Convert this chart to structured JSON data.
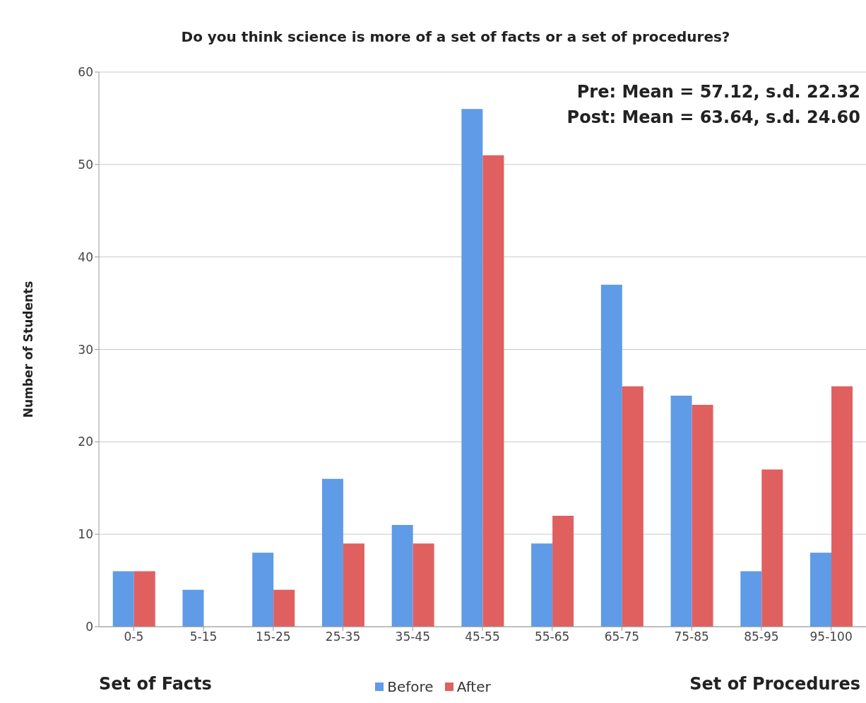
{
  "chart_data": {
    "type": "bar",
    "title": "Do you think science is more of a set of facts or a set of procedures?",
    "ylabel": "Number of Students",
    "categories": [
      "0-5",
      "5-15",
      "15-25",
      "25-35",
      "35-45",
      "45-55",
      "55-65",
      "65-75",
      "75-85",
      "85-95",
      "95-100"
    ],
    "series": [
      {
        "name": "Before",
        "color": "#5f9be6",
        "values": [
          6,
          4,
          8,
          16,
          11,
          56,
          9,
          37,
          25,
          6,
          8
        ]
      },
      {
        "name": "After",
        "color": "#e06060",
        "values": [
          6,
          0,
          4,
          9,
          9,
          51,
          12,
          26,
          24,
          17,
          26
        ]
      }
    ],
    "ylim": [
      0,
      60
    ],
    "yticks": [
      0,
      10,
      20,
      30,
      40,
      50,
      60
    ],
    "grid": "y",
    "legend": "bottom",
    "annotations": [
      "Pre: Mean = 57.12, s.d. 22.32",
      "Post: Mean = 63.64, s.d. 24.60",
      "Set of Facts",
      "Set of Procedures"
    ]
  }
}
